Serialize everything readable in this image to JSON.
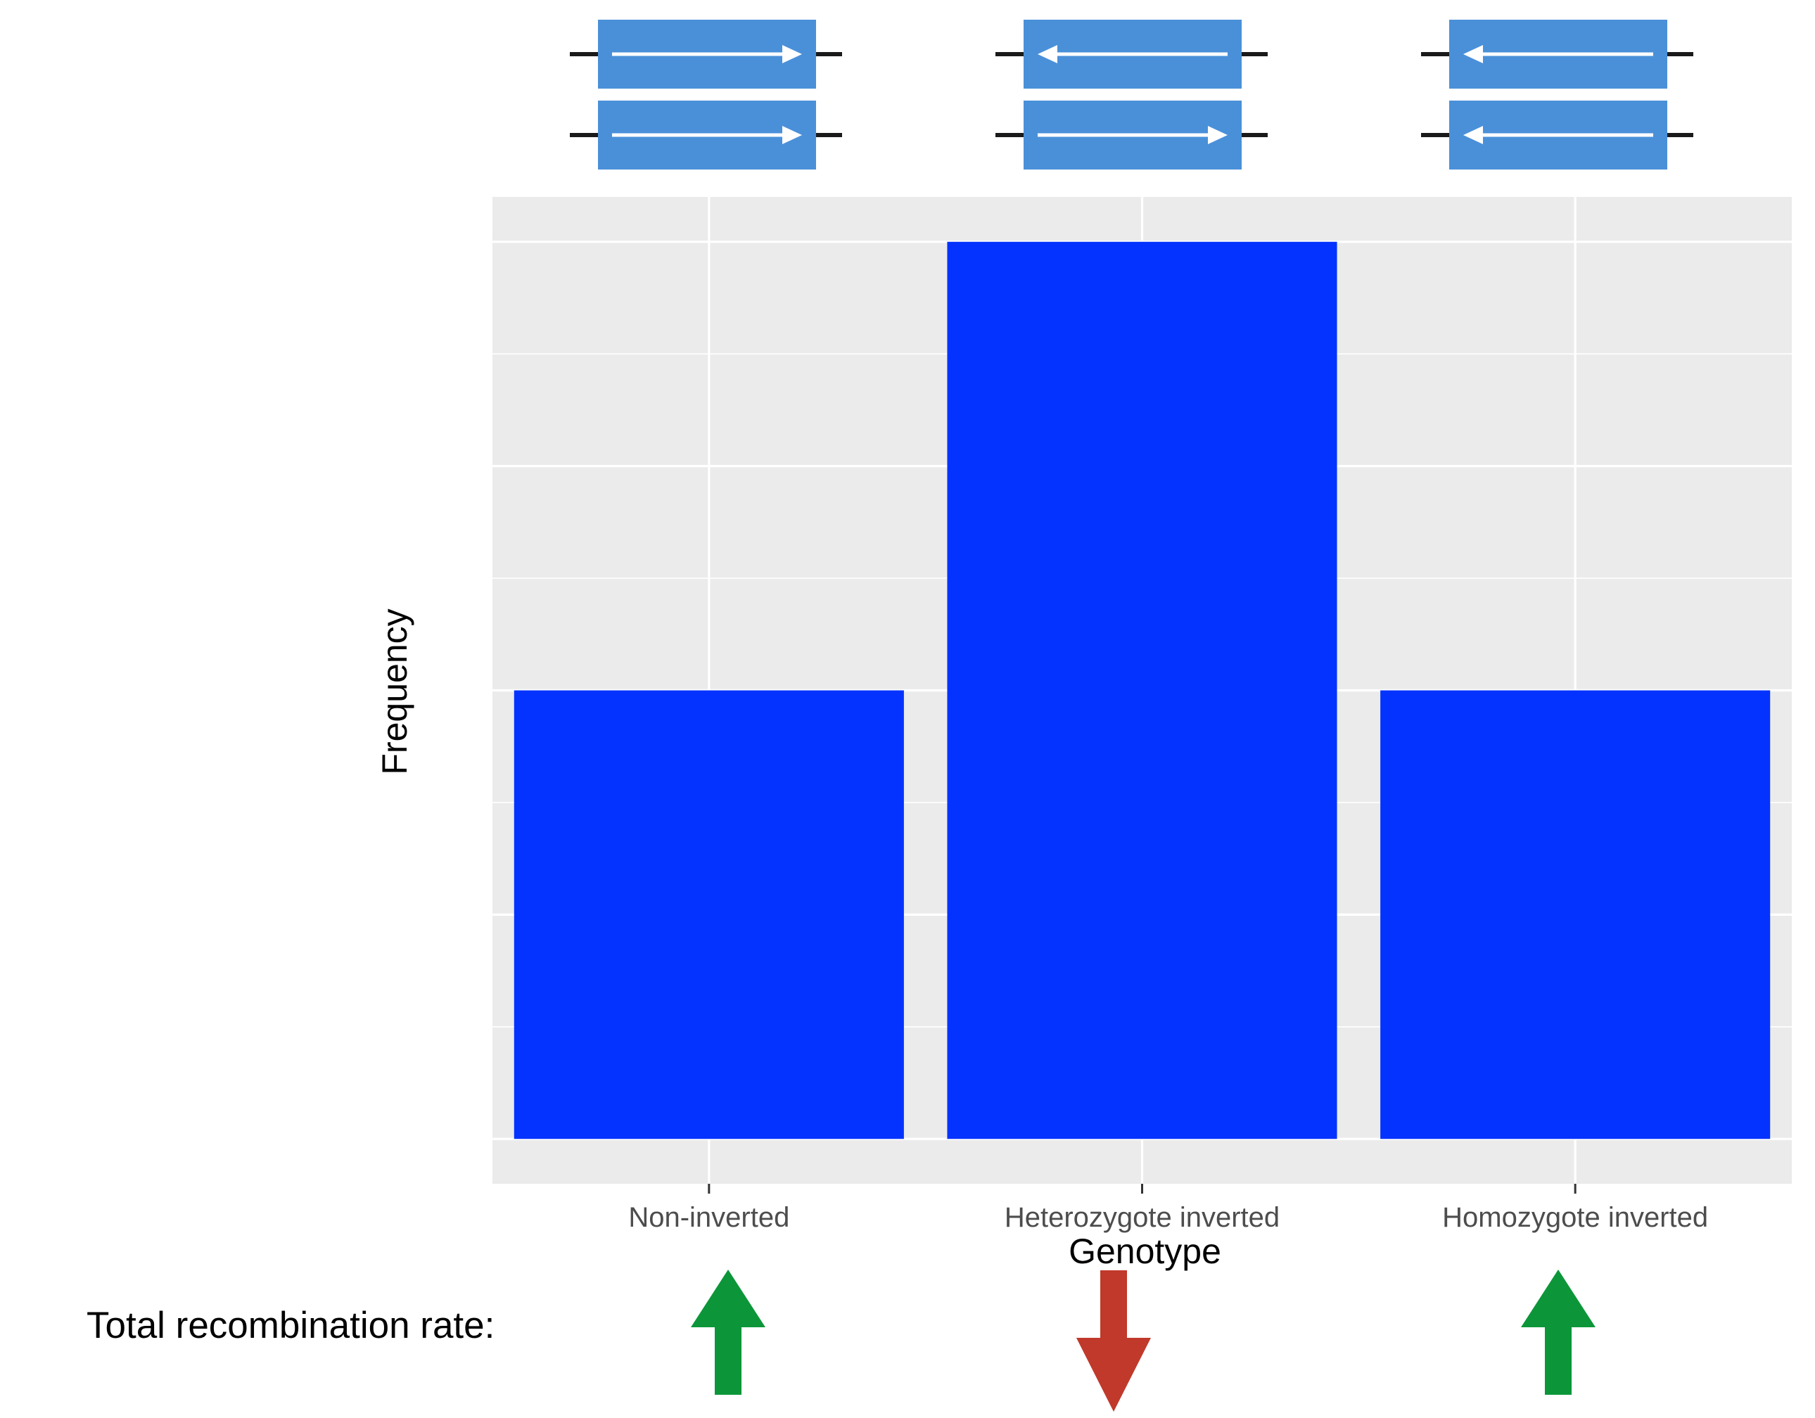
{
  "chart_data": {
    "type": "bar",
    "categories": [
      "Non-inverted",
      "Heterozygote inverted",
      "Homozygote inverted"
    ],
    "values": [
      2,
      4,
      2
    ],
    "title": "",
    "xlabel": "Genotype",
    "ylabel": "Frequency",
    "ylim": [
      -0.2,
      4.2
    ],
    "grid": true,
    "y_major_ticks": [
      0,
      1,
      2,
      3,
      4
    ],
    "y_tick_labels_shown": false,
    "bar_color": "#0433ff",
    "panel_background": "#ebebeb",
    "gridline_color": "#ffffff"
  },
  "chromosome_icons": [
    {
      "category": "Non-inverted",
      "top_arrow": "right",
      "bottom_arrow": "right"
    },
    {
      "category": "Heterozygote inverted",
      "top_arrow": "left",
      "bottom_arrow": "right"
    },
    {
      "category": "Homozygote inverted",
      "top_arrow": "left",
      "bottom_arrow": "left"
    }
  ],
  "chromosome_color": "#4a90d9",
  "recombination": {
    "label": "Total recombination rate:",
    "arrows": [
      {
        "category": "Non-inverted",
        "direction": "up",
        "color": "#0c9639"
      },
      {
        "category": "Heterozygote inverted",
        "direction": "down",
        "color": "#c0392b"
      },
      {
        "category": "Homozygote inverted",
        "direction": "up",
        "color": "#0c9639"
      }
    ]
  }
}
